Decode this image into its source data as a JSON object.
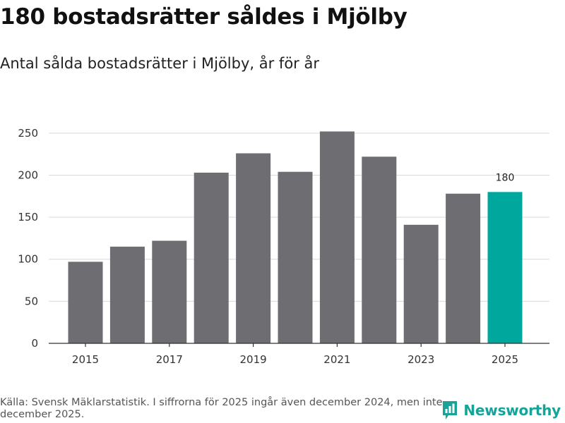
{
  "header": {
    "title": "180 bostadsrätter såldes i Mjölby",
    "subtitle": "Antal sålda bostadsrätter i Mjölby, år för år"
  },
  "footer": {
    "source": "Källa: Svensk Mäklarstatistik. I siffrorna för 2025 ingår även december 2024, men inte december 2025.",
    "brand": "Newsworthy"
  },
  "colors": {
    "bar": "#6e6d72",
    "highlight": "#00a79d",
    "grid": "#d9d9d9",
    "axis": "#333333",
    "brand": "#17a398"
  },
  "chart_data": {
    "type": "bar",
    "title": "180 bostadsrätter såldes i Mjölby",
    "subtitle": "Antal sålda bostadsrätter i Mjölby, år för år",
    "xlabel": "",
    "ylabel": "",
    "categories": [
      "2015",
      "2016",
      "2017",
      "2018",
      "2019",
      "2020",
      "2021",
      "2022",
      "2023",
      "2024",
      "2025"
    ],
    "values": [
      97,
      115,
      122,
      203,
      226,
      204,
      252,
      222,
      141,
      178,
      180
    ],
    "highlight_index": 10,
    "annotations": [
      {
        "category": "2025",
        "text": "180"
      }
    ],
    "x_tick_labels": [
      "2015",
      "2017",
      "2019",
      "2021",
      "2023",
      "2025"
    ],
    "y_ticks": [
      0,
      50,
      100,
      150,
      200,
      250
    ],
    "y_tick_labels": [
      "0",
      "50",
      "100",
      "150",
      "200",
      "250"
    ],
    "ylim": [
      0,
      270
    ],
    "grid": true,
    "legend": "none"
  }
}
